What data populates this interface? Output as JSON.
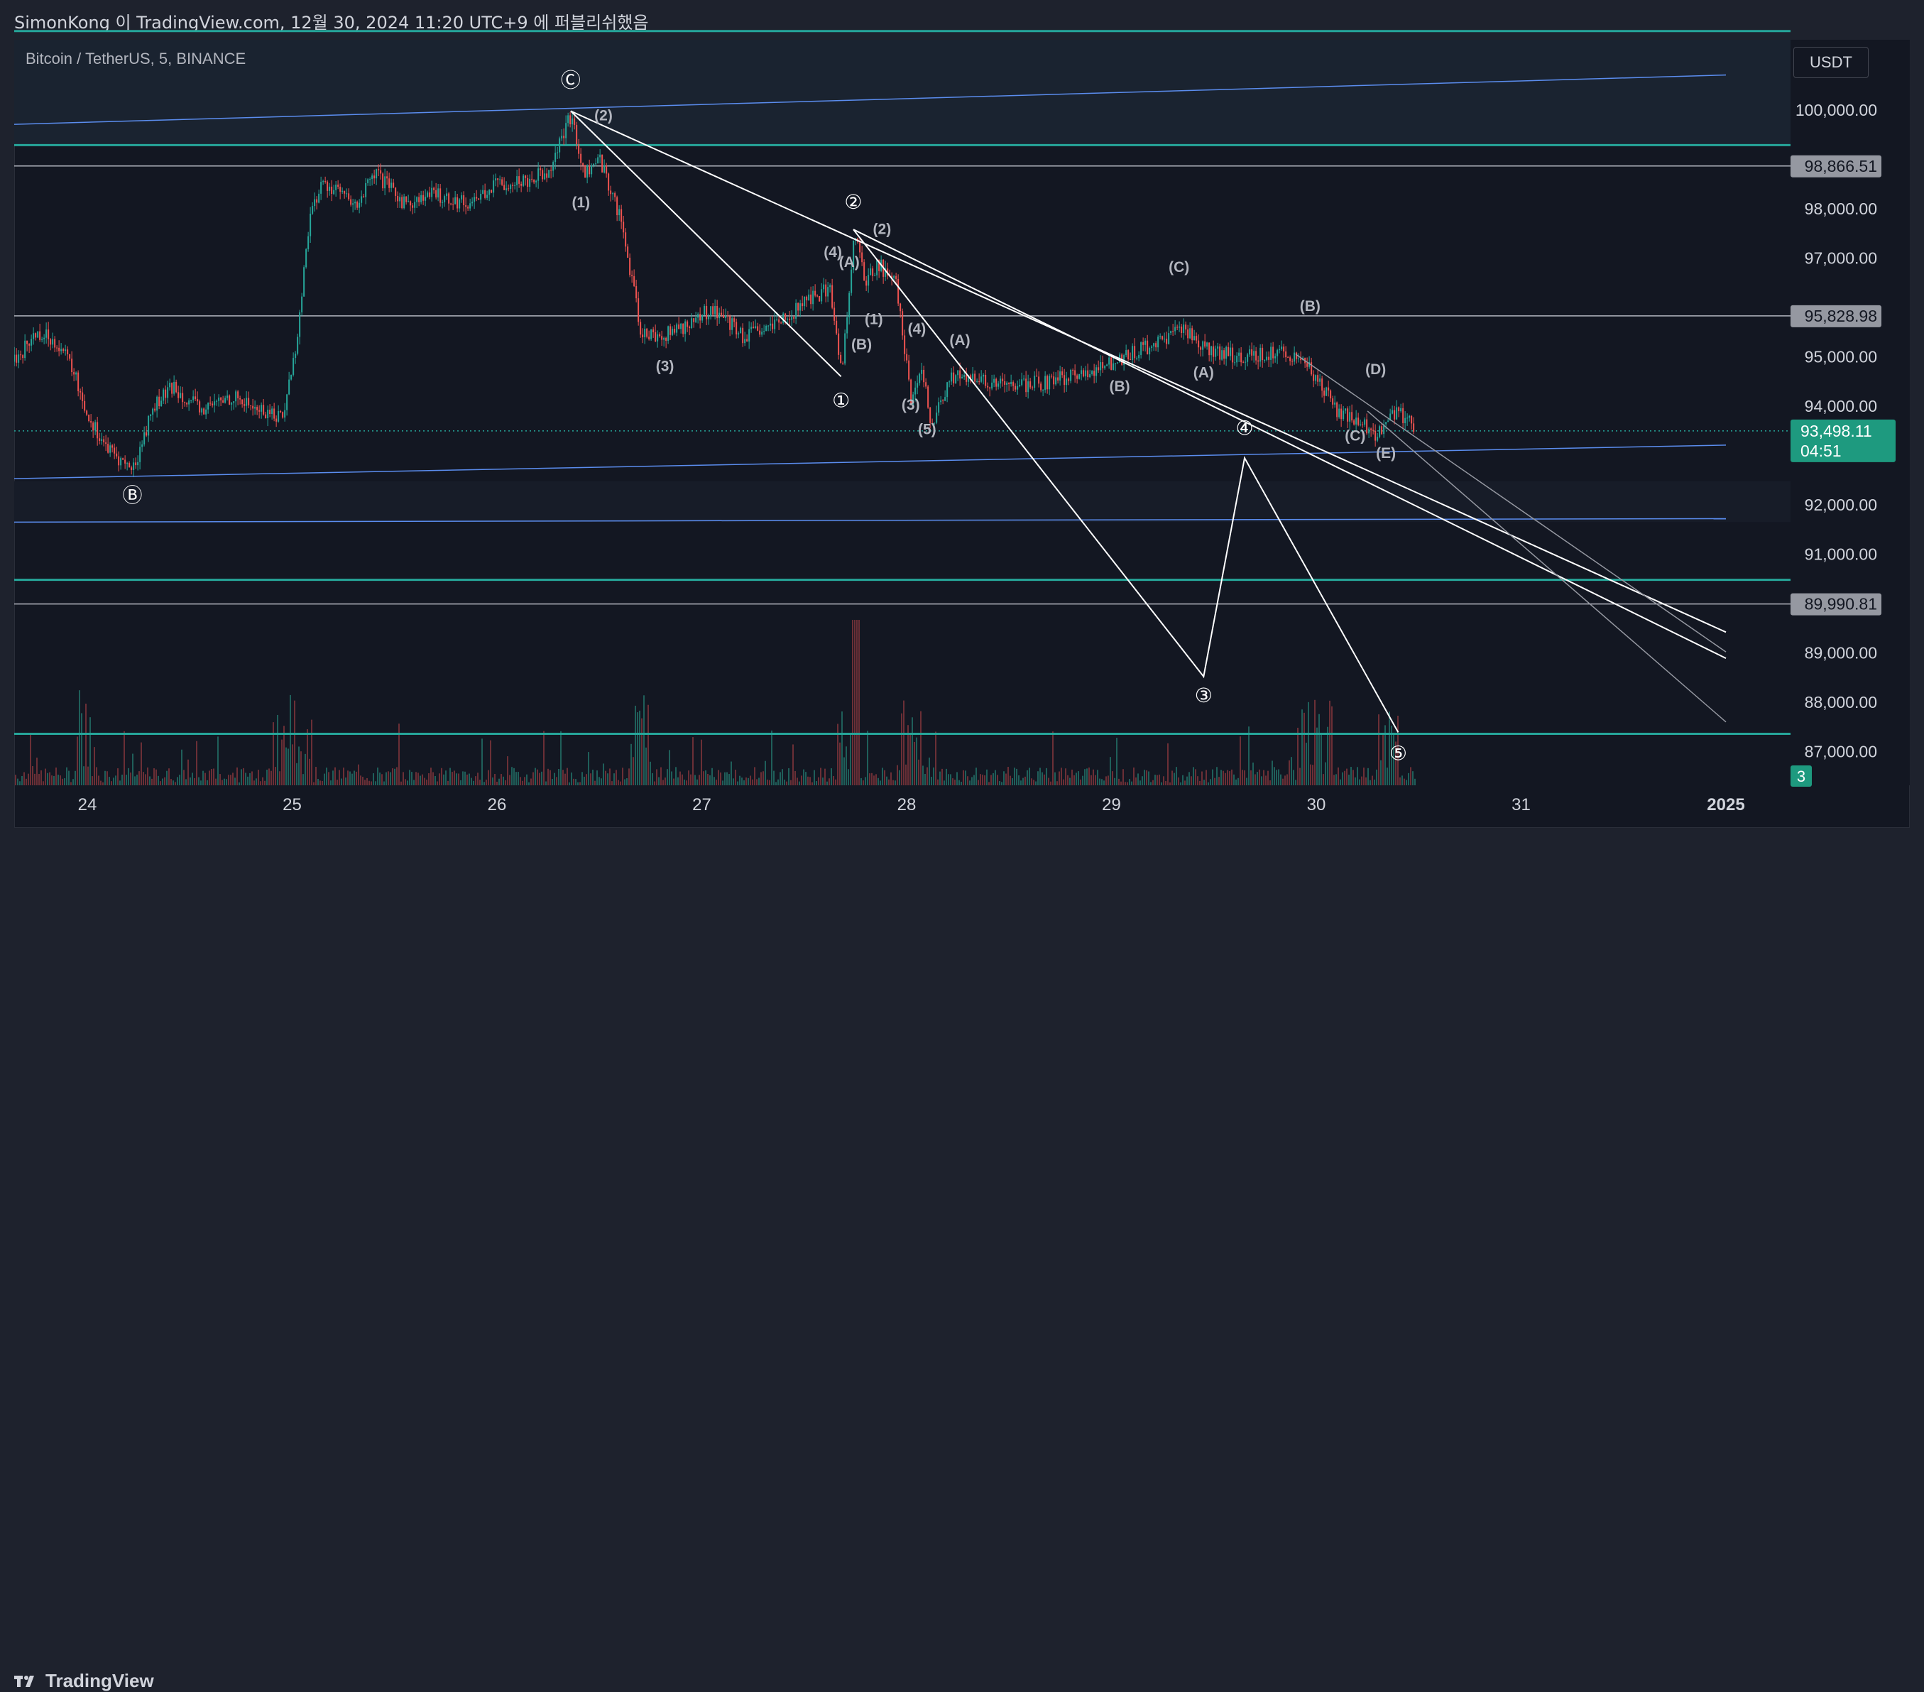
{
  "header": {
    "publish_line": "SimonKong 이 TradingView.com, 12월 30, 2024 11:20 UTC+9 에 퍼블리쉬했음"
  },
  "chart": {
    "symbol_label": "Bitcoin / TetherUS, 5, BINANCE",
    "currency": "USDT"
  },
  "footer": {
    "logo_text": "TradingView"
  },
  "colors": {
    "background": "#131722",
    "axis_text": "#d1d4dc",
    "teal_line": "#26a69a",
    "blue_line": "#5b8def",
    "white_line": "#ffffff",
    "up_candle": "#26a69a",
    "down_candle": "#ef5350",
    "price_tag": "#1e9a7f",
    "gray_tag": "#9598a1"
  },
  "chart_data": {
    "type": "candlestick",
    "symbol": "Bitcoin / TetherUS",
    "interval": "5",
    "exchange": "BINANCE",
    "x_ticks": [
      "24",
      "25",
      "26",
      "27",
      "28",
      "29",
      "30",
      "31",
      "2025"
    ],
    "y_ticks": [
      "100,000.00",
      "98,000.00",
      "97,000.00",
      "95,000.00",
      "94,000.00",
      "92,000.00",
      "91,000.00",
      "89,000.00",
      "88,000.00",
      "87,000.00"
    ],
    "ylim": [
      86300,
      102000
    ],
    "xlim": [
      23.64,
      31.56
    ],
    "price_tags": [
      {
        "label": "98,866.51",
        "value": 98866.51,
        "style": "gray"
      },
      {
        "label": "95,828.98",
        "value": 95828.98,
        "style": "gray"
      },
      {
        "label": "89,990.81",
        "value": 89990.81,
        "style": "gray"
      }
    ],
    "last_price": {
      "label": "93,498.11",
      "countdown": "04:51",
      "value": 93498.11
    },
    "volume_tag": "3",
    "close_path": [
      [
        23.64,
        94900
      ],
      [
        23.75,
        95500
      ],
      [
        23.85,
        95300
      ],
      [
        23.92,
        94800
      ],
      [
        24.0,
        93800
      ],
      [
        24.1,
        93100
      ],
      [
        24.22,
        92700
      ],
      [
        24.32,
        94000
      ],
      [
        24.42,
        94400
      ],
      [
        24.55,
        93900
      ],
      [
        24.7,
        94200
      ],
      [
        24.85,
        93900
      ],
      [
        24.95,
        93800
      ],
      [
        25.02,
        95300
      ],
      [
        25.08,
        97800
      ],
      [
        25.14,
        98500
      ],
      [
        25.22,
        98400
      ],
      [
        25.3,
        98000
      ],
      [
        25.4,
        98700
      ],
      [
        25.55,
        98100
      ],
      [
        25.7,
        98300
      ],
      [
        25.85,
        98100
      ],
      [
        26.0,
        98500
      ],
      [
        26.15,
        98600
      ],
      [
        26.25,
        98800
      ],
      [
        26.36,
        99900
      ],
      [
        26.42,
        98700
      ],
      [
        26.5,
        99000
      ],
      [
        26.6,
        97800
      ],
      [
        26.7,
        95500
      ],
      [
        26.8,
        95400
      ],
      [
        26.95,
        95700
      ],
      [
        27.05,
        96000
      ],
      [
        27.2,
        95400
      ],
      [
        27.35,
        95600
      ],
      [
        27.5,
        96100
      ],
      [
        27.62,
        96400
      ],
      [
        27.68,
        94700
      ],
      [
        27.74,
        97500
      ],
      [
        27.8,
        96500
      ],
      [
        27.86,
        96900
      ],
      [
        27.95,
        96400
      ],
      [
        28.02,
        94000
      ],
      [
        28.07,
        94700
      ],
      [
        28.12,
        93600
      ],
      [
        28.22,
        94600
      ],
      [
        28.35,
        94500
      ],
      [
        28.5,
        94400
      ],
      [
        28.7,
        94500
      ],
      [
        28.9,
        94700
      ],
      [
        29.1,
        95100
      ],
      [
        29.25,
        95300
      ],
      [
        29.35,
        95600
      ],
      [
        29.45,
        95200
      ],
      [
        29.6,
        95000
      ],
      [
        29.8,
        95100
      ],
      [
        29.93,
        95000
      ],
      [
        30.0,
        94500
      ],
      [
        30.1,
        93900
      ],
      [
        30.2,
        93700
      ],
      [
        30.3,
        93400
      ],
      [
        30.38,
        93900
      ],
      [
        30.45,
        93700
      ],
      [
        30.48,
        93498
      ]
    ],
    "horizontal_levels": [
      {
        "value": 101600,
        "color": "teal"
      },
      {
        "value": 99290,
        "color": "teal"
      },
      {
        "value": 98866.51,
        "color": "gray"
      },
      {
        "value": 95828.98,
        "color": "gray"
      },
      {
        "value": 90480,
        "color": "teal"
      },
      {
        "value": 89990.81,
        "color": "gray"
      },
      {
        "value": 87360,
        "color": "teal"
      }
    ],
    "trend_lines": [
      {
        "from": [
          23.64,
          99710
        ],
        "to": [
          32.0,
          100710
        ],
        "color": "blue"
      },
      {
        "from": [
          23.64,
          92530
        ],
        "to": [
          32.0,
          93210
        ],
        "color": "blue"
      },
      {
        "from": [
          23.64,
          91650
        ],
        "to": [
          32.0,
          91720
        ],
        "color": "blue"
      },
      {
        "from": [
          26.36,
          99980
        ],
        "to": [
          32.0,
          89420
        ],
        "color": "white"
      },
      {
        "from": [
          27.74,
          97580
        ],
        "to": [
          32.0,
          88890
        ],
        "color": "white"
      },
      {
        "from": [
          26.36,
          99980
        ],
        "to": [
          27.68,
          94600
        ],
        "color": "white"
      }
    ],
    "projection_path": [
      [
        27.74,
        97580
      ],
      [
        29.45,
        88520
      ],
      [
        29.65,
        92950
      ],
      [
        30.4,
        87390
      ]
    ],
    "wave_labels": [
      {
        "text": "Ⓒ",
        "x": 26.36,
        "y": 100470
      },
      {
        "text": "Ⓑ",
        "x": 24.22,
        "y": 92060
      },
      {
        "text": "②",
        "x": 27.74,
        "y": 98000
      },
      {
        "text": "①",
        "x": 27.68,
        "y": 93980
      },
      {
        "text": "③",
        "x": 29.45,
        "y": 88000
      },
      {
        "text": "④",
        "x": 29.65,
        "y": 93420
      },
      {
        "text": "⑤",
        "x": 30.4,
        "y": 86830
      },
      {
        "text": "(1)",
        "x": 26.41,
        "y": 98030
      },
      {
        "text": "(2)",
        "x": 26.52,
        "y": 99790
      },
      {
        "text": "(3)",
        "x": 26.82,
        "y": 94710
      },
      {
        "text": "(4)",
        "x": 27.64,
        "y": 97020
      },
      {
        "text": "(2)",
        "x": 27.88,
        "y": 97490
      },
      {
        "text": "(A)",
        "x": 27.72,
        "y": 96820
      },
      {
        "text": "(B)",
        "x": 27.78,
        "y": 95150
      },
      {
        "text": "(1)",
        "x": 27.84,
        "y": 95660
      },
      {
        "text": "(4)",
        "x": 28.05,
        "y": 95470
      },
      {
        "text": "(3)",
        "x": 28.02,
        "y": 93930
      },
      {
        "text": "(5)",
        "x": 28.1,
        "y": 93430
      },
      {
        "text": "(A)",
        "x": 28.26,
        "y": 95240
      },
      {
        "text": "(B)",
        "x": 29.04,
        "y": 94300
      },
      {
        "text": "(C)",
        "x": 29.33,
        "y": 96720
      },
      {
        "text": "(A)",
        "x": 29.45,
        "y": 94580
      },
      {
        "text": "(B)",
        "x": 29.97,
        "y": 95930
      },
      {
        "text": "(D)",
        "x": 30.29,
        "y": 94650
      },
      {
        "text": "(C)",
        "x": 30.19,
        "y": 93300
      },
      {
        "text": "(E)",
        "x": 30.34,
        "y": 92950
      }
    ]
  }
}
